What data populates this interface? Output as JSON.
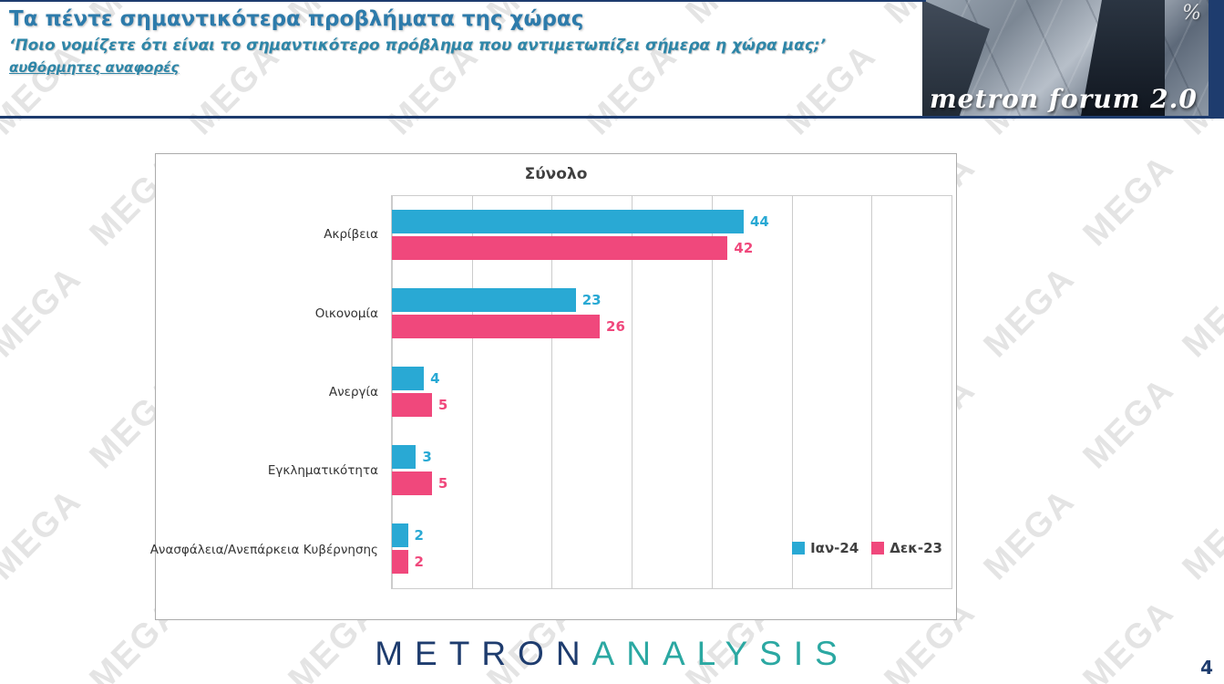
{
  "header": {
    "title": "Τα πέντε σημαντικότερα προβλήματα της χώρας",
    "subtitle": "‘Ποιο νομίζετε ότι είναι το σημαντικότερο πρόβλημα που αντιμετωπίζει σήμερα η χώρα μας;’",
    "note": "αυθόρμητες αναφορές",
    "brand": {
      "name": "metron forum 2.0",
      "percent_icon": "%"
    }
  },
  "watermark": {
    "text": "MEGA"
  },
  "chart_data": {
    "type": "bar",
    "orientation": "horizontal",
    "title": "Σύνολο",
    "categories": [
      "Ακρίβεια",
      "Οικονομία",
      "Ανεργία",
      "Εγκληματικότητα",
      "Ανασφάλεια/Ανεπάρκεια Κυβέρνησης"
    ],
    "series": [
      {
        "name": "Ιαν-24",
        "color": "#29a9d4",
        "values": [
          44,
          23,
          4,
          3,
          2
        ]
      },
      {
        "name": "Δεκ-23",
        "color": "#f0487c",
        "values": [
          42,
          26,
          5,
          5,
          2
        ]
      }
    ],
    "xlim": [
      0,
      70
    ],
    "grid_interval": 10,
    "grid": true,
    "legend_position": "bottom-right"
  },
  "footer": {
    "logo_part1": "METRON",
    "logo_part2": "ANALYSIS",
    "page_number": "4"
  }
}
